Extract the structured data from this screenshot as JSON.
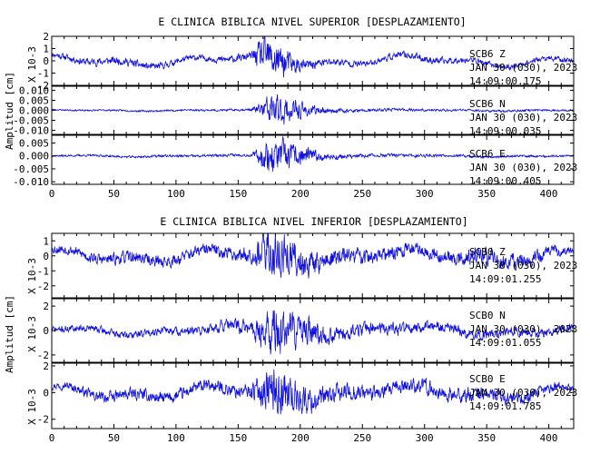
{
  "chart_data": [
    {
      "type": "line",
      "title": "E CLINICA BIBLICA NIVEL SUPERIOR [DESPLAZAMIENTO]",
      "ylabel": "Amplitud [cm]",
      "xlim": [
        0,
        420
      ],
      "x_ticks": [
        0,
        50,
        100,
        150,
        200,
        250,
        300,
        350,
        400
      ],
      "series": [
        {
          "name": "SCB6 Z",
          "date": "JAN 30 (030), 2023",
          "start_time": "14:09:00.175",
          "scale_label": "X 10-3",
          "ylim": [
            -2,
            2
          ],
          "y_ticks": [
            {
              "v": 2,
              "t": "2"
            },
            {
              "v": 1,
              "t": "1"
            },
            {
              "v": 0,
              "t": "0"
            },
            {
              "v": -1,
              "t": "-1"
            },
            {
              "v": -2,
              "t": "-2"
            }
          ],
          "envelope_x": [
            0,
            30,
            60,
            120,
            160,
            170,
            180,
            190,
            200,
            220,
            260,
            300,
            340,
            380,
            420
          ],
          "envelope_amp": [
            0.5,
            0.6,
            0.6,
            0.5,
            0.6,
            1.9,
            2.0,
            1.4,
            0.8,
            0.6,
            0.5,
            0.6,
            0.5,
            0.5,
            0.5
          ],
          "drift_amp": 0.5,
          "seed": 11
        },
        {
          "name": "SCB6 N",
          "date": "JAN 30 (030), 2023",
          "start_time": "14:09:00.035",
          "scale_label": "",
          "ylim": [
            -0.012,
            0.012
          ],
          "y_ticks": [
            {
              "v": 0.01,
              "t": "0.010"
            },
            {
              "v": 0.005,
              "t": "0.005"
            },
            {
              "v": 0,
              "t": "0.000"
            },
            {
              "v": -0.005,
              "t": "-0.005"
            },
            {
              "v": -0.01,
              "t": "-0.010"
            }
          ],
          "envelope_x": [
            0,
            160,
            168,
            175,
            185,
            195,
            205,
            215,
            240,
            420
          ],
          "envelope_amp": [
            0.0006,
            0.0008,
            0.004,
            0.009,
            0.008,
            0.006,
            0.004,
            0.002,
            0.001,
            0.0007
          ],
          "drift_amp": 0.0004,
          "seed": 23
        },
        {
          "name": "SCB6 E",
          "date": "JAN 30 (030), 2023",
          "start_time": "14:09:00.405",
          "scale_label": "",
          "ylim": [
            -0.011,
            0.008
          ],
          "y_ticks": [
            {
              "v": 0.005,
              "t": "0.005"
            },
            {
              "v": 0,
              "t": "0.000"
            },
            {
              "v": -0.005,
              "t": "-0.005"
            },
            {
              "v": -0.01,
              "t": "-0.010"
            }
          ],
          "envelope_x": [
            0,
            160,
            168,
            175,
            185,
            195,
            205,
            215,
            240,
            420
          ],
          "envelope_amp": [
            0.0006,
            0.0008,
            0.004,
            0.008,
            0.007,
            0.005,
            0.004,
            0.002,
            0.001,
            0.0006
          ],
          "drift_amp": 0.0004,
          "seed": 37
        }
      ]
    },
    {
      "type": "line",
      "title": "E CLINICA BIBLICA NIVEL INFERIOR [DESPLAZAMIENTO]",
      "ylabel": "Amplitud [cm]",
      "xlim": [
        0,
        420
      ],
      "x_ticks": [
        0,
        50,
        100,
        150,
        200,
        250,
        300,
        350,
        400
      ],
      "series": [
        {
          "name": "SCB0 Z",
          "date": "JAN 30 (030), 2023",
          "start_time": "14:09:01.255",
          "scale_label": "X 10-3",
          "ylim": [
            -2.8,
            1.5
          ],
          "y_ticks": [
            {
              "v": 1,
              "t": "1"
            },
            {
              "v": 0,
              "t": "0"
            },
            {
              "v": -1,
              "t": "-1"
            },
            {
              "v": -2,
              "t": "-2"
            }
          ],
          "envelope_x": [
            0,
            60,
            120,
            160,
            170,
            180,
            195,
            210,
            250,
            300,
            340,
            380,
            420
          ],
          "envelope_amp": [
            0.6,
            0.7,
            0.7,
            0.8,
            1.8,
            2.2,
            1.6,
            1.1,
            0.8,
            0.8,
            0.9,
            0.8,
            0.6
          ],
          "drift_amp": 0.5,
          "seed": 53
        },
        {
          "name": "SCB0 N",
          "date": "JAN 30 (030), 2023",
          "start_time": "14:09:01.055",
          "scale_label": "X 10-3",
          "ylim": [
            -2.6,
            2.6
          ],
          "y_ticks": [
            {
              "v": 2,
              "t": "2"
            },
            {
              "v": 0,
              "t": "0"
            },
            {
              "v": -2,
              "t": "-2"
            }
          ],
          "envelope_x": [
            0,
            120,
            160,
            172,
            180,
            190,
            205,
            230,
            300,
            420
          ],
          "envelope_amp": [
            0.5,
            0.6,
            0.9,
            2.0,
            2.6,
            2.0,
            1.4,
            0.9,
            0.7,
            0.6
          ],
          "drift_amp": 0.4,
          "seed": 71
        },
        {
          "name": "SCB0 E",
          "date": "JAN 30 (030), 2023",
          "start_time": "14:09:01.785",
          "scale_label": "X 10-3",
          "ylim": [
            -2.7,
            2.2
          ],
          "y_ticks": [
            {
              "v": 2,
              "t": "2"
            },
            {
              "v": 0,
              "t": "0"
            },
            {
              "v": -2,
              "t": "-2"
            }
          ],
          "envelope_x": [
            0,
            60,
            120,
            160,
            172,
            182,
            195,
            215,
            260,
            300,
            340,
            420
          ],
          "envelope_amp": [
            0.6,
            0.8,
            0.8,
            0.9,
            1.9,
            2.4,
            1.7,
            1.2,
            0.9,
            0.9,
            0.9,
            0.7
          ],
          "drift_amp": 0.6,
          "seed": 97
        }
      ]
    }
  ],
  "colors": {
    "trace": "#1010e0",
    "axis": "#000000"
  }
}
